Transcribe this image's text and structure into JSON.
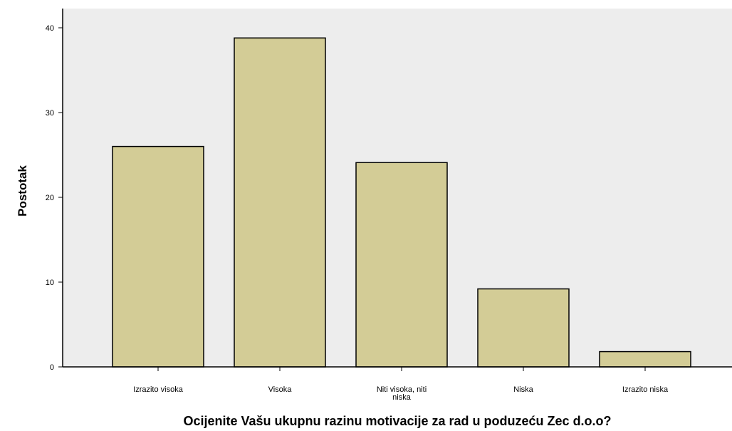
{
  "chart_data": {
    "type": "bar",
    "categories": [
      [
        "Izrazito visoka"
      ],
      [
        "Visoka"
      ],
      [
        "Niti visoka, niti",
        "niska"
      ],
      [
        "Niska"
      ],
      [
        "Izrazito niska"
      ]
    ],
    "values": [
      26.0,
      38.8,
      24.1,
      9.2,
      1.8
    ],
    "title": "",
    "xlabel": "Ocijenite Vašu ukupnu  razinu motivacije za rad u poduzeću Zec d.o.o?",
    "ylabel": "Postotak",
    "ylim": [
      0,
      40
    ],
    "yticks": [
      0,
      10,
      20,
      30,
      40
    ],
    "grid": false,
    "legend": "none",
    "colors": {
      "plot_background": "#ededed",
      "bar_fill": "#d3cc96",
      "bar_stroke": "#000000",
      "axis": "#000000"
    }
  }
}
